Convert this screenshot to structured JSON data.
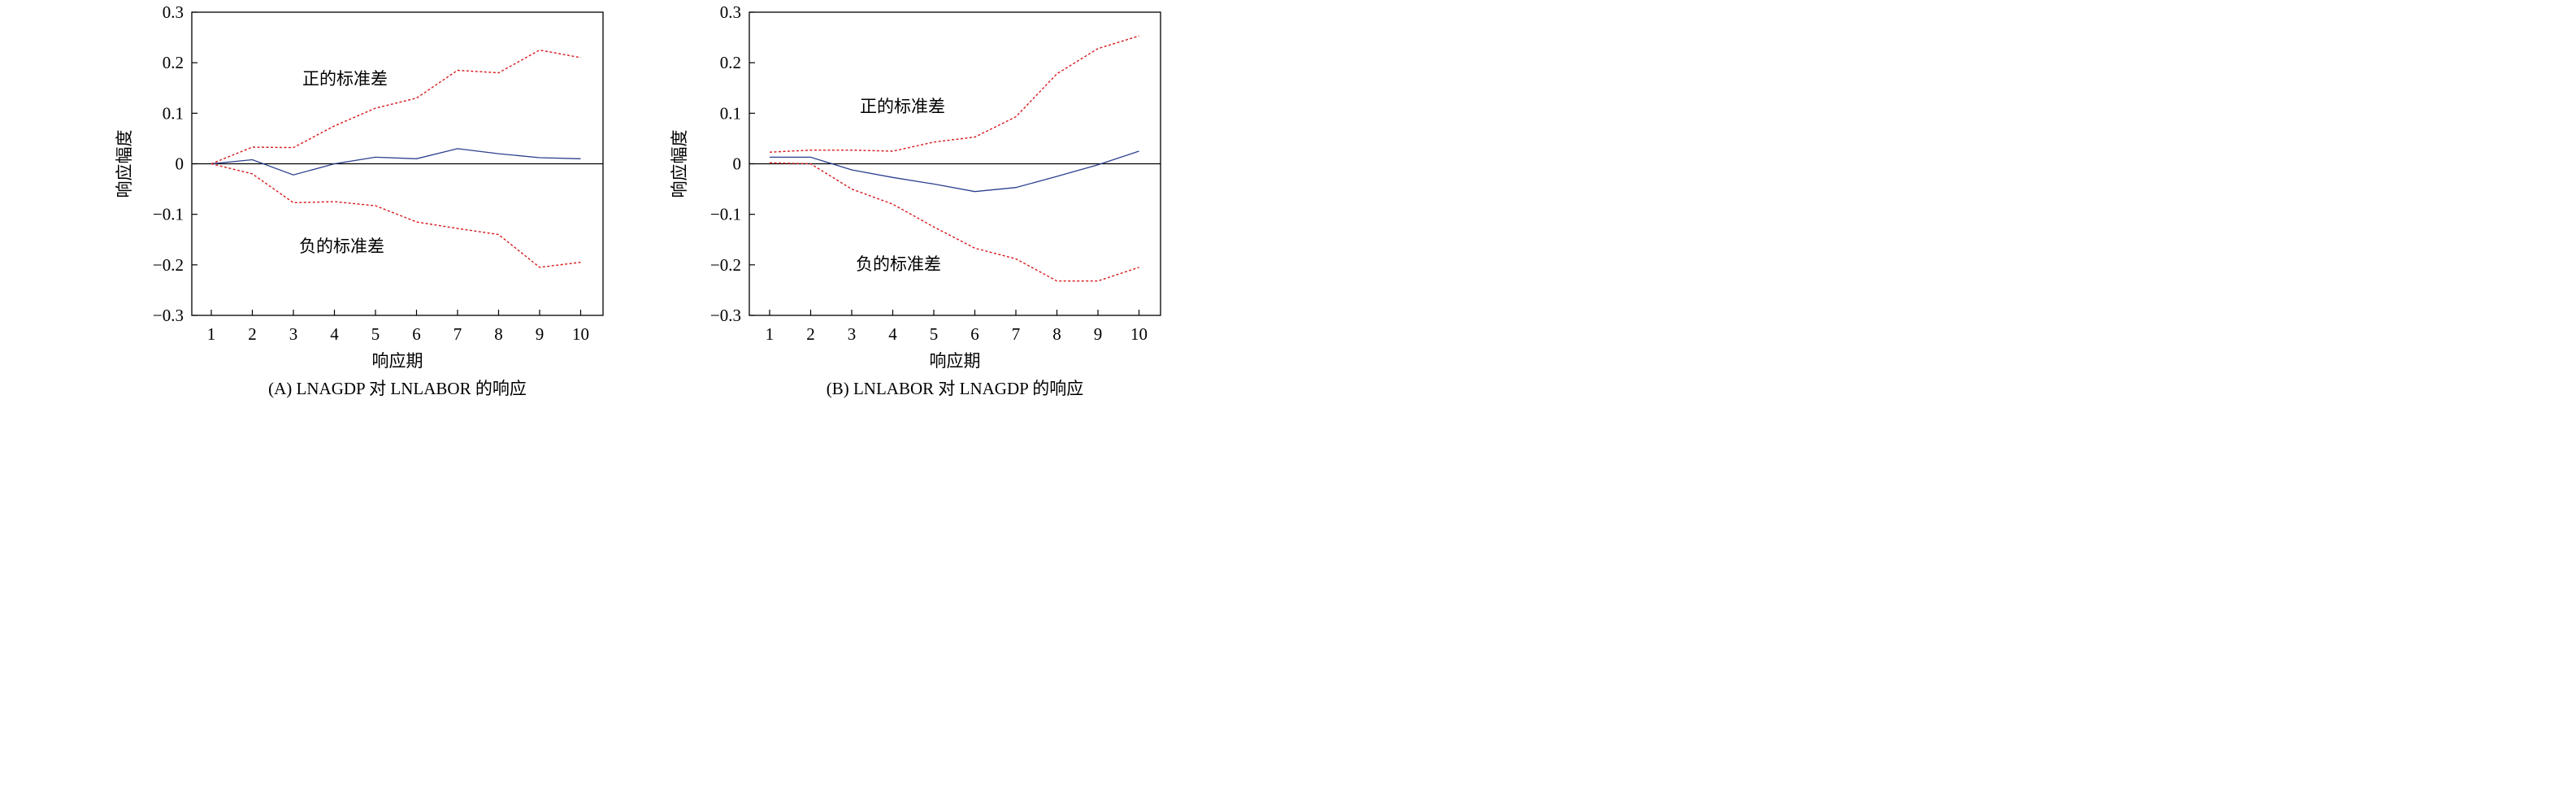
{
  "chart_data": [
    {
      "type": "line",
      "caption": "(A) LNAGDP 对 LNLABOR 的响应",
      "xlabel": "响应期",
      "ylabel": "响应幅度",
      "ylim": [
        -0.3,
        0.3
      ],
      "yticks": [
        "0.3",
        "0.2",
        "0.1",
        "0",
        "-0.1",
        "-0.2",
        "-0.3"
      ],
      "categories": [
        "1",
        "2",
        "3",
        "4",
        "5",
        "6",
        "7",
        "8",
        "9",
        "10"
      ],
      "series": [
        {
          "name": "正的标准差",
          "style": "dashed",
          "color": "#d7191c",
          "values": [
            0.0,
            0.033,
            0.032,
            0.075,
            0.11,
            0.13,
            0.185,
            0.18,
            0.225,
            0.21
          ]
        },
        {
          "name": "响应",
          "style": "solid",
          "color": "#2b3f8f",
          "values": [
            0.0,
            0.008,
            -0.022,
            0.0,
            0.013,
            0.01,
            0.03,
            0.02,
            0.012,
            0.01
          ]
        },
        {
          "name": "负的标准差",
          "style": "dashed",
          "color": "#d7191c",
          "values": [
            0.0,
            -0.02,
            -0.077,
            -0.075,
            -0.083,
            -0.115,
            -0.128,
            -0.14,
            -0.205,
            -0.195
          ]
        }
      ],
      "annotations": {
        "upper": "正的标准差",
        "lower": "负的标准差"
      }
    },
    {
      "type": "line",
      "caption": "(B) LNLABOR 对 LNAGDP 的响应",
      "xlabel": "响应期",
      "ylabel": "响应幅度",
      "ylim": [
        -0.3,
        0.3
      ],
      "yticks": [
        "0.3",
        "0.2",
        "0.1",
        "0",
        "-0.1",
        "-0.2",
        "-0.3"
      ],
      "categories": [
        "1",
        "2",
        "3",
        "4",
        "5",
        "6",
        "7",
        "8",
        "9",
        "10"
      ],
      "series": [
        {
          "name": "正的标准差",
          "style": "dashed",
          "color": "#d7191c",
          "values": [
            0.023,
            0.027,
            0.027,
            0.025,
            0.043,
            0.053,
            0.093,
            0.178,
            0.228,
            0.253
          ]
        },
        {
          "name": "响应",
          "style": "solid",
          "color": "#2b3f8f",
          "values": [
            0.013,
            0.013,
            -0.012,
            -0.027,
            -0.04,
            -0.055,
            -0.047,
            -0.025,
            -0.002,
            0.025
          ]
        },
        {
          "name": "负的标准差",
          "style": "dashed",
          "color": "#d7191c",
          "values": [
            0.002,
            0.0,
            -0.05,
            -0.08,
            -0.125,
            -0.167,
            -0.188,
            -0.232,
            -0.232,
            -0.205
          ]
        }
      ],
      "annotations": {
        "upper": "正的标准差",
        "lower": "负的标准差"
      }
    }
  ]
}
